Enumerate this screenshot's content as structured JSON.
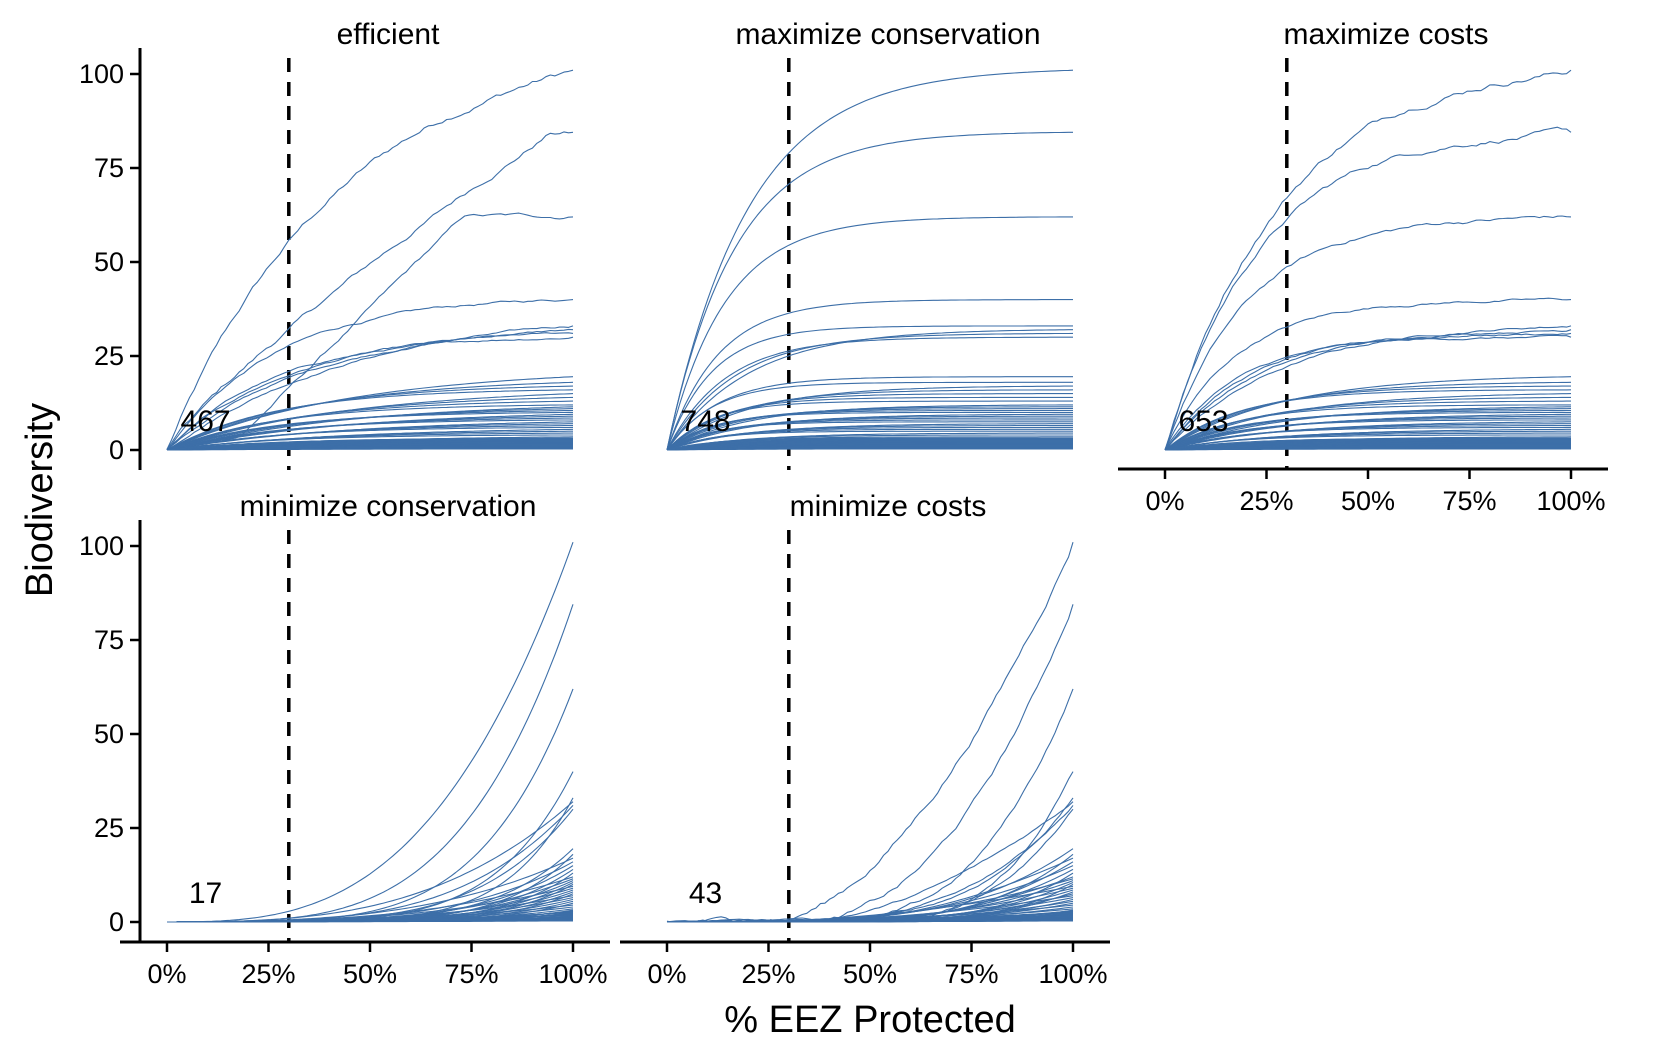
{
  "chart_data": {
    "type": "line",
    "ylabel": "Biodiversity",
    "xlabel": "% EEZ Protected",
    "xlim": [
      0,
      1
    ],
    "ylim": [
      0,
      104
    ],
    "x_ticks": [
      0,
      0.25,
      0.5,
      0.75,
      1
    ],
    "x_tick_labels": [
      "0%",
      "25%",
      "50%",
      "75%",
      "100%"
    ],
    "y_ticks": [
      0,
      25,
      50,
      75,
      100
    ],
    "y_tick_labels": [
      "0",
      "25",
      "50",
      "75",
      "100"
    ],
    "reference_line_x": 0.3,
    "reference_line_style": "dashed",
    "line_color": "#3D6FA8",
    "series_final_values": [
      101,
      84.5,
      62,
      40,
      33,
      32,
      31,
      30,
      19.5,
      18,
      17,
      16,
      15,
      14,
      13,
      12,
      11.5,
      11,
      10.5,
      10,
      9.5,
      9,
      8.5,
      8,
      7.5,
      7,
      6.5,
      6,
      5.5,
      5,
      4.5,
      4,
      3.5,
      3,
      2.5,
      2,
      1.5,
      1
    ],
    "facets": [
      {
        "title": "efficient",
        "count_label": "467",
        "shape": "concave-noisy",
        "show_x_axis": false
      },
      {
        "title": "maximize conservation",
        "count_label": "748",
        "shape": "saturating",
        "show_x_axis": false
      },
      {
        "title": "maximize costs",
        "count_label": "653",
        "shape": "concave-fast-noisy",
        "show_x_axis": true
      },
      {
        "title": "minimize conservation",
        "count_label": "17",
        "shape": "convex-late",
        "show_x_axis": true
      },
      {
        "title": "minimize costs",
        "count_label": "43",
        "shape": "convex-linear-noisy",
        "show_x_axis": true
      }
    ]
  }
}
